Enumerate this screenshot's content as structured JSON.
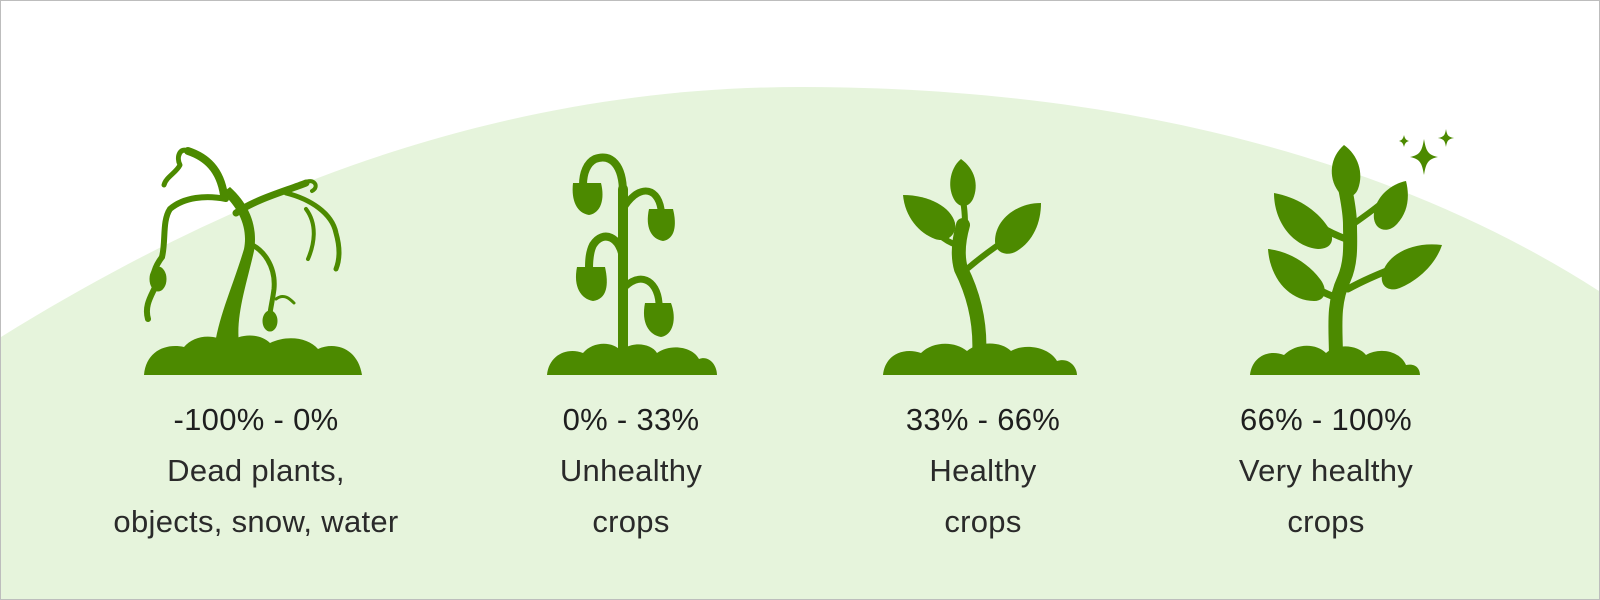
{
  "colors": {
    "background": "#ffffff",
    "hill": "#e6f4dc",
    "plant": "#4c8a00",
    "text": "#1e1e1e"
  },
  "categories": [
    {
      "range": "-100% - 0%",
      "description": "Dead plants,\nobjects, snow, water",
      "icon": "dead-plant-icon"
    },
    {
      "range": "0% - 33%",
      "description": "Unhealthy\ncrops",
      "icon": "wilting-plant-icon"
    },
    {
      "range": "33% - 66%",
      "description": "Healthy\ncrops",
      "icon": "healthy-sprout-icon"
    },
    {
      "range": "66% - 100%",
      "description": "Very healthy\ncrops",
      "icon": "thriving-plant-icon"
    }
  ]
}
